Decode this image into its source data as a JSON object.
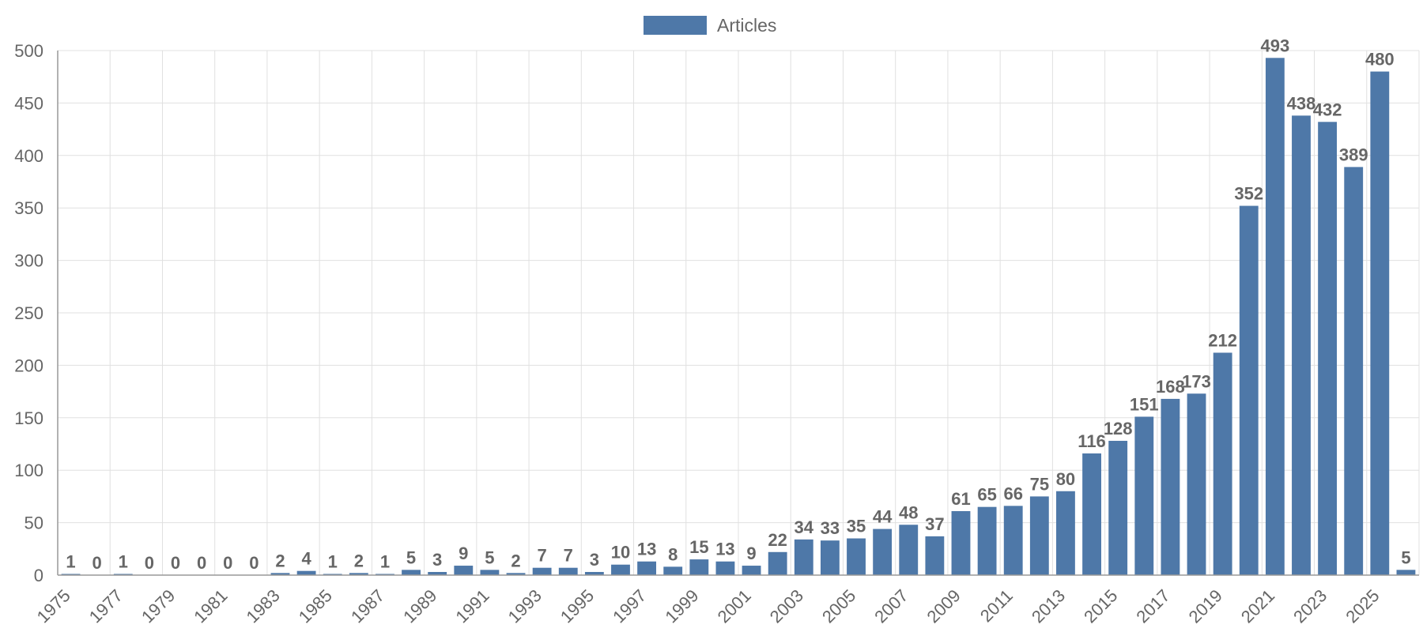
{
  "legend": {
    "label": "Articles"
  },
  "colors": {
    "bar": "#4e78a8",
    "grid": "#e0e0e0",
    "axis": "#999999",
    "text": "#666666"
  },
  "chart_data": {
    "type": "bar",
    "categories": [
      "1975",
      "1976",
      "1977",
      "1978",
      "1979",
      "1980",
      "1981",
      "1982",
      "1983",
      "1984",
      "1985",
      "1986",
      "1987",
      "1988",
      "1989",
      "1990",
      "1991",
      "1992",
      "1993",
      "1994",
      "1995",
      "1996",
      "1997",
      "1998",
      "1999",
      "2000",
      "2001",
      "2002",
      "2003",
      "2004",
      "2005",
      "2006",
      "2007",
      "2008",
      "2009",
      "2010",
      "2011",
      "2012",
      "2013",
      "2014",
      "2015",
      "2016",
      "2017",
      "2018",
      "2019",
      "2020",
      "2021",
      "2022",
      "2023",
      "2024",
      "2025",
      "2026"
    ],
    "series": [
      {
        "name": "Articles",
        "values": [
          1,
          0,
          1,
          0,
          0,
          0,
          0,
          0,
          2,
          4,
          1,
          2,
          1,
          5,
          3,
          9,
          5,
          2,
          7,
          7,
          3,
          10,
          13,
          8,
          15,
          13,
          9,
          22,
          34,
          33,
          35,
          44,
          48,
          37,
          61,
          65,
          66,
          75,
          80,
          116,
          128,
          151,
          168,
          173,
          212,
          352,
          493,
          438,
          432,
          389,
          480,
          5
        ]
      }
    ],
    "x_tick_labels": [
      "1975",
      "1977",
      "1979",
      "1981",
      "1983",
      "1985",
      "1987",
      "1989",
      "1991",
      "1993",
      "1995",
      "1997",
      "1999",
      "2001",
      "2003",
      "2005",
      "2007",
      "2009",
      "2011",
      "2013",
      "2015",
      "2017",
      "2019",
      "2021",
      "2023",
      "2025"
    ],
    "y_ticks": [
      0,
      50,
      100,
      150,
      200,
      250,
      300,
      350,
      400,
      450,
      500
    ],
    "ylim": [
      0,
      500
    ],
    "grid": true,
    "legend_position": "top-center",
    "title": "",
    "xlabel": "",
    "ylabel": ""
  }
}
